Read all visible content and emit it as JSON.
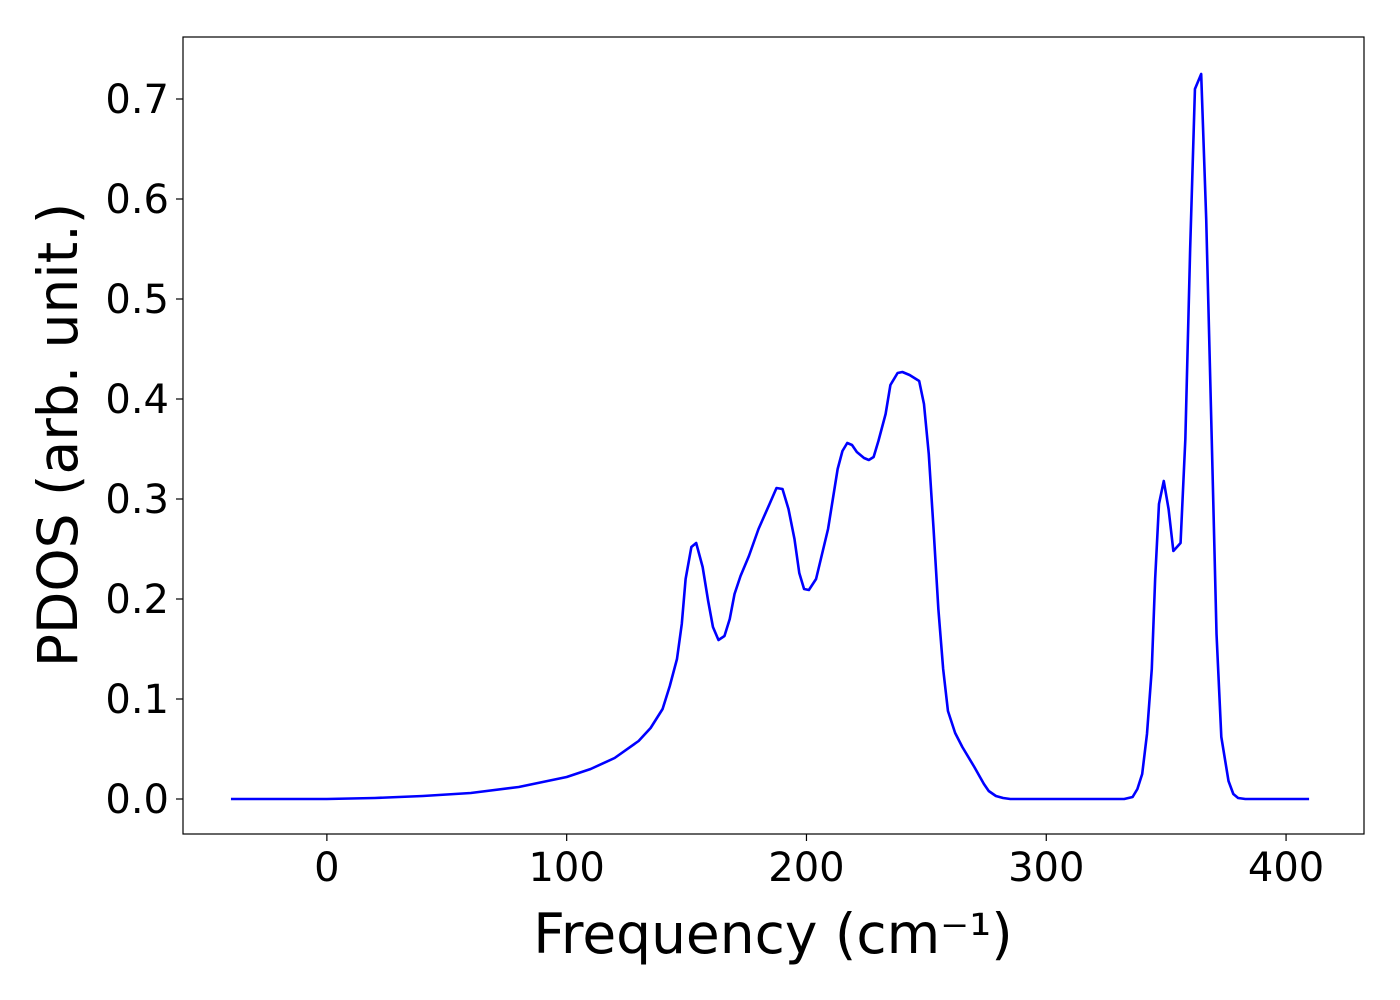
{
  "chart_data": {
    "type": "line",
    "xlabel": "Frequency (cm⁻¹)",
    "ylabel": "PDOS (arb. unit.)",
    "x": [
      -40,
      0,
      20,
      40,
      60,
      80,
      100,
      110,
      120,
      130,
      135,
      140,
      143,
      146,
      148,
      149.6,
      152,
      154,
      156.7,
      159,
      161,
      163.3,
      165.8,
      168,
      170,
      172.5,
      176,
      180,
      184.6,
      187.5,
      190,
      192.5,
      195,
      197,
      199,
      201,
      204,
      206,
      209,
      211,
      213,
      215,
      217,
      219,
      221,
      224,
      226,
      228,
      230,
      233,
      235,
      238,
      240,
      243,
      245,
      247,
      249,
      251,
      253,
      255,
      257,
      259,
      262,
      265,
      270,
      274,
      276,
      279,
      282,
      285,
      332.5,
      336,
      338,
      340,
      342,
      344,
      345.4,
      347,
      349,
      351,
      353,
      356,
      358,
      360,
      362,
      364.6,
      366.7,
      369,
      371,
      373,
      376,
      378,
      380,
      383,
      385,
      409.6
    ],
    "values": [
      0,
      0,
      0.001,
      0.003,
      0.006,
      0.012,
      0.022,
      0.03,
      0.041,
      0.058,
      0.071,
      0.09,
      0.113,
      0.14,
      0.175,
      0.22,
      0.252,
      0.256,
      0.232,
      0.198,
      0.172,
      0.159,
      0.163,
      0.18,
      0.205,
      0.223,
      0.243,
      0.27,
      0.295,
      0.311,
      0.31,
      0.29,
      0.26,
      0.226,
      0.21,
      0.209,
      0.22,
      0.24,
      0.27,
      0.3,
      0.33,
      0.348,
      0.356,
      0.354,
      0.347,
      0.341,
      0.339,
      0.342,
      0.358,
      0.385,
      0.414,
      0.426,
      0.427,
      0.424,
      0.421,
      0.418,
      0.395,
      0.345,
      0.27,
      0.19,
      0.13,
      0.088,
      0.066,
      0.052,
      0.032,
      0.015,
      0.008,
      0.003,
      0.001,
      0,
      0,
      0.002,
      0.01,
      0.025,
      0.065,
      0.13,
      0.22,
      0.295,
      0.318,
      0.29,
      0.248,
      0.256,
      0.36,
      0.55,
      0.71,
      0.725,
      0.58,
      0.36,
      0.165,
      0.062,
      0.018,
      0.005,
      0.001,
      0,
      0,
      0
    ],
    "color": "#0000ff",
    "xlim": [
      -60,
      432.5
    ],
    "ylim": [
      -0.035,
      0.762
    ],
    "xticks": [
      0,
      100,
      200,
      300,
      400
    ],
    "yticks": [
      {
        "value": 0,
        "label": "0.0"
      },
      0.1,
      0.2,
      0.3,
      0.4,
      0.5,
      0.6,
      0.7
    ],
    "grid": false
  }
}
